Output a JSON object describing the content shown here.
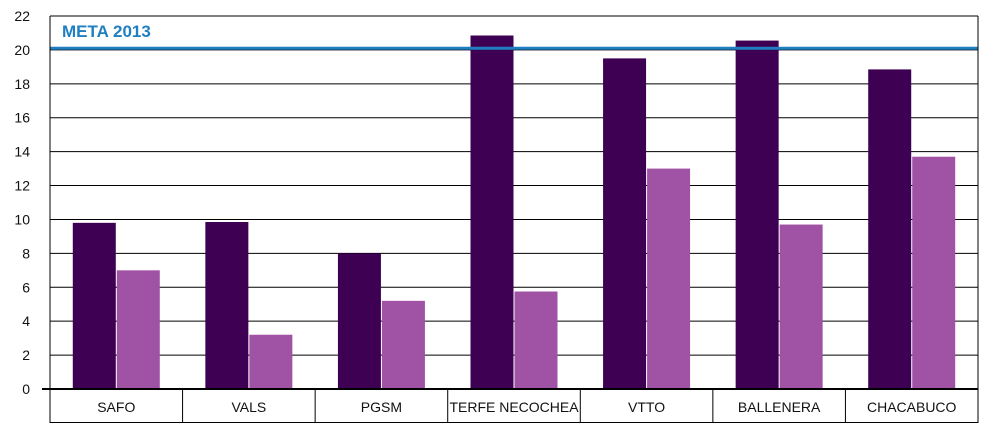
{
  "chart_data": {
    "type": "bar",
    "categories": [
      "SAFO",
      "VALS",
      "PGSM",
      "TERFE NECOCHEA",
      "VTTO",
      "BALLENERA",
      "CHACABUCO"
    ],
    "series": [
      {
        "values": [
          9.8,
          9.85,
          8.0,
          20.85,
          19.5,
          20.55,
          18.85
        ],
        "color": "#3d0052"
      },
      {
        "values": [
          7.0,
          3.2,
          5.2,
          5.75,
          13.0,
          9.7,
          13.7
        ],
        "color": "#a053a4"
      }
    ],
    "ylim": [
      0,
      22
    ],
    "yticks": [
      0,
      2,
      4,
      6,
      8,
      10,
      12,
      14,
      16,
      18,
      20,
      22
    ],
    "grid": true,
    "reference_line": {
      "value": 20.1,
      "label": "META 2013",
      "color": "#1f7fc1"
    }
  }
}
